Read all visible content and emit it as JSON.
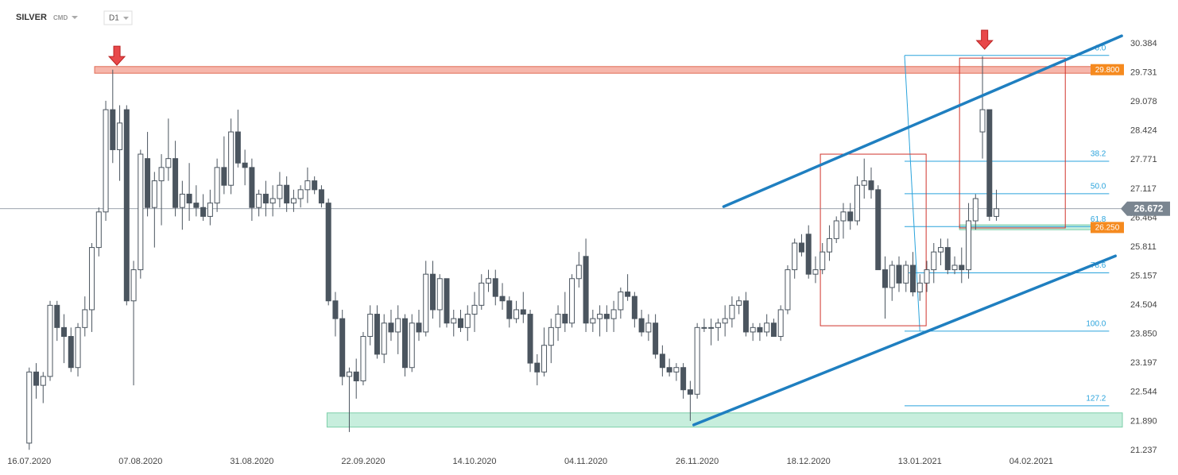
{
  "chart_data": {
    "type": "candlestick",
    "symbol": "SILVER",
    "source": "CMD",
    "interval": "D1",
    "up_color": "#ffffff",
    "down_color": "#4b555f",
    "xlim": [
      -4.2,
      157.1
    ],
    "ylim": [
      20.683,
      31.367
    ],
    "xticks": [
      {
        "value": 0,
        "label": "16.07.2020"
      },
      {
        "value": 16,
        "label": "07.08.2020"
      },
      {
        "value": 32,
        "label": "31.08.2020"
      },
      {
        "value": 48,
        "label": "22.09.2020"
      },
      {
        "value": 64,
        "label": "14.10.2020"
      },
      {
        "value": 80,
        "label": "04.11.2020"
      },
      {
        "value": 96,
        "label": "26.11.2020"
      },
      {
        "value": 112,
        "label": "18.12.2020"
      },
      {
        "value": 128,
        "label": "13.01.2021"
      },
      {
        "value": 144,
        "label": "04.02.2021"
      }
    ],
    "yticks": [
      30.384,
      29.731,
      29.078,
      28.424,
      27.771,
      27.117,
      26.464,
      25.811,
      25.157,
      24.504,
      {
        "value": 23.85,
        "label": "23.850"
      },
      23.197,
      22.544,
      {
        "value": 21.89,
        "label": "21.890"
      },
      21.237
    ],
    "last_price": 26.672,
    "ohlc": [
      [
        21.4,
        23.1,
        21.25,
        23.0
      ],
      [
        23.0,
        23.2,
        22.4,
        22.7
      ],
      [
        22.7,
        23.0,
        22.3,
        22.9
      ],
      [
        22.9,
        24.6,
        22.8,
        24.5
      ],
      [
        24.5,
        24.6,
        23.7,
        24.0
      ],
      [
        24.0,
        24.3,
        23.2,
        23.8
      ],
      [
        23.8,
        24.0,
        23.0,
        23.1
      ],
      [
        23.1,
        24.1,
        22.9,
        24.0
      ],
      [
        24.0,
        24.7,
        23.8,
        24.4
      ],
      [
        24.4,
        25.9,
        23.9,
        25.8
      ],
      [
        25.8,
        26.7,
        25.6,
        26.6
      ],
      [
        26.6,
        29.1,
        26.4,
        28.9
      ],
      [
        28.9,
        29.8,
        27.7,
        28.0
      ],
      [
        28.0,
        29.0,
        27.3,
        28.6
      ],
      [
        28.9,
        29.0,
        24.5,
        24.6
      ],
      [
        24.6,
        25.5,
        22.7,
        25.3
      ],
      [
        25.3,
        28.0,
        25.1,
        27.9
      ],
      [
        27.8,
        28.4,
        26.5,
        26.7
      ],
      [
        26.7,
        27.5,
        25.8,
        27.3
      ],
      [
        27.3,
        27.9,
        26.3,
        27.6
      ],
      [
        27.6,
        28.7,
        27.3,
        27.8
      ],
      [
        27.8,
        28.2,
        26.5,
        26.7
      ],
      [
        26.7,
        27.3,
        26.2,
        27.0
      ],
      [
        27.0,
        27.7,
        26.4,
        26.8
      ],
      [
        26.8,
        27.2,
        26.5,
        26.7
      ],
      [
        26.7,
        27.0,
        26.4,
        26.5
      ],
      [
        26.5,
        27.1,
        26.3,
        26.8
      ],
      [
        26.8,
        27.8,
        26.6,
        27.6
      ],
      [
        27.6,
        28.3,
        27.0,
        27.2
      ],
      [
        27.2,
        28.7,
        27.0,
        28.4
      ],
      [
        28.4,
        28.9,
        27.6,
        27.7
      ],
      [
        27.7,
        28.0,
        27.2,
        27.6
      ],
      [
        27.6,
        27.8,
        26.4,
        26.7
      ],
      [
        26.7,
        27.1,
        26.5,
        27.0
      ],
      [
        27.0,
        27.3,
        26.5,
        26.8
      ],
      [
        26.8,
        27.2,
        26.5,
        26.9
      ],
      [
        26.9,
        27.5,
        26.7,
        27.2
      ],
      [
        27.2,
        27.4,
        26.6,
        26.8
      ],
      [
        26.8,
        27.1,
        26.6,
        26.9
      ],
      [
        26.9,
        27.2,
        26.7,
        27.1
      ],
      [
        27.1,
        27.6,
        26.8,
        27.3
      ],
      [
        27.3,
        27.4,
        27.0,
        27.1
      ],
      [
        27.1,
        27.2,
        26.7,
        26.8
      ],
      [
        26.8,
        26.9,
        24.5,
        24.6
      ],
      [
        24.6,
        24.8,
        23.8,
        24.2
      ],
      [
        24.2,
        24.4,
        22.7,
        22.9
      ],
      [
        22.9,
        23.1,
        21.65,
        23.0
      ],
      [
        23.0,
        23.3,
        22.4,
        22.8
      ],
      [
        22.8,
        23.9,
        22.7,
        23.8
      ],
      [
        23.8,
        24.5,
        23.6,
        24.3
      ],
      [
        24.3,
        24.5,
        23.3,
        23.4
      ],
      [
        23.4,
        24.3,
        23.2,
        24.1
      ],
      [
        24.1,
        24.4,
        23.7,
        23.9
      ],
      [
        23.9,
        24.5,
        23.4,
        24.2
      ],
      [
        24.2,
        24.3,
        22.9,
        23.1
      ],
      [
        23.1,
        24.3,
        23.0,
        24.1
      ],
      [
        24.1,
        24.4,
        23.7,
        23.9
      ],
      [
        23.9,
        25.5,
        23.8,
        25.2
      ],
      [
        25.2,
        25.5,
        24.2,
        24.4
      ],
      [
        24.4,
        25.2,
        24.0,
        25.1
      ],
      [
        25.1,
        25.1,
        24.0,
        24.1
      ],
      [
        24.1,
        24.4,
        23.8,
        24.2
      ],
      [
        24.2,
        24.4,
        23.9,
        24.0
      ],
      [
        24.0,
        24.5,
        23.7,
        24.3
      ],
      [
        24.3,
        24.8,
        23.9,
        24.5
      ],
      [
        24.5,
        25.2,
        24.4,
        25.0
      ],
      [
        25.0,
        25.3,
        24.8,
        25.1
      ],
      [
        25.1,
        25.3,
        24.5,
        24.7
      ],
      [
        24.7,
        25.0,
        24.4,
        24.6
      ],
      [
        24.6,
        24.7,
        24.0,
        24.2
      ],
      [
        24.2,
        24.6,
        24.1,
        24.4
      ],
      [
        24.4,
        24.8,
        24.1,
        24.3
      ],
      [
        24.3,
        24.4,
        23.0,
        23.2
      ],
      [
        23.2,
        23.4,
        22.7,
        23.0
      ],
      [
        23.0,
        24.0,
        22.9,
        23.6
      ],
      [
        23.6,
        24.2,
        23.2,
        24.0
      ],
      [
        24.0,
        24.5,
        23.7,
        24.3
      ],
      [
        24.3,
        24.8,
        23.9,
        24.1
      ],
      [
        24.1,
        25.2,
        24.0,
        25.1
      ],
      [
        25.1,
        25.7,
        24.9,
        25.4
      ],
      [
        25.6,
        26.0,
        23.9,
        24.1
      ],
      [
        24.1,
        24.4,
        23.9,
        24.2
      ],
      [
        24.2,
        24.5,
        23.8,
        24.3
      ],
      [
        24.3,
        24.5,
        23.9,
        24.2
      ],
      [
        24.2,
        24.6,
        23.9,
        24.4
      ],
      [
        24.4,
        24.9,
        24.2,
        24.8
      ],
      [
        24.8,
        25.2,
        24.6,
        24.7
      ],
      [
        24.7,
        24.8,
        24.0,
        24.2
      ],
      [
        24.2,
        24.4,
        23.8,
        23.9
      ],
      [
        23.9,
        24.3,
        23.7,
        24.1
      ],
      [
        24.1,
        24.3,
        23.3,
        23.4
      ],
      [
        23.4,
        23.6,
        22.9,
        23.1
      ],
      [
        23.1,
        23.3,
        22.9,
        23.0
      ],
      [
        23.0,
        23.2,
        22.8,
        23.1
      ],
      [
        23.1,
        23.2,
        22.4,
        22.6
      ],
      [
        22.6,
        22.8,
        21.9,
        22.5
      ],
      [
        22.5,
        24.1,
        22.4,
        24.0
      ],
      [
        24.0,
        24.2,
        23.9,
        24.0
      ],
      [
        24.0,
        24.2,
        23.6,
        24.0
      ],
      [
        24.0,
        24.2,
        23.7,
        24.1
      ],
      [
        24.1,
        24.5,
        23.8,
        24.2
      ],
      [
        24.2,
        24.7,
        24.0,
        24.5
      ],
      [
        24.5,
        24.7,
        24.3,
        24.6
      ],
      [
        24.6,
        24.8,
        23.8,
        23.9
      ],
      [
        23.9,
        24.1,
        23.7,
        24.0
      ],
      [
        24.0,
        24.1,
        23.7,
        23.9
      ],
      [
        23.9,
        24.3,
        23.8,
        24.1
      ],
      [
        24.1,
        24.2,
        23.8,
        23.8
      ],
      [
        23.8,
        24.5,
        23.7,
        24.4
      ],
      [
        24.4,
        25.4,
        24.3,
        25.3
      ],
      [
        25.3,
        26.0,
        25.1,
        25.9
      ],
      [
        25.9,
        26.1,
        25.6,
        25.7
      ],
      [
        26.1,
        26.3,
        25.1,
        25.2
      ],
      [
        25.2,
        25.6,
        25.0,
        25.3
      ],
      [
        25.3,
        25.9,
        25.2,
        25.7
      ],
      [
        25.7,
        26.3,
        25.5,
        26.0
      ],
      [
        26.0,
        26.5,
        25.9,
        26.4
      ],
      [
        26.4,
        26.8,
        26.0,
        26.6
      ],
      [
        26.6,
        26.8,
        26.2,
        26.4
      ],
      [
        26.4,
        27.4,
        26.3,
        27.2
      ],
      [
        27.2,
        27.8,
        26.9,
        27.3
      ],
      [
        27.3,
        27.6,
        26.9,
        27.1
      ],
      [
        27.1,
        27.2,
        25.3,
        25.3
      ],
      [
        25.3,
        25.6,
        24.2,
        24.9
      ],
      [
        24.9,
        25.5,
        24.6,
        25.4
      ],
      [
        25.4,
        25.6,
        24.8,
        25.0
      ],
      [
        25.0,
        25.5,
        24.8,
        25.4
      ],
      [
        25.4,
        25.7,
        24.7,
        24.8
      ],
      [
        24.8,
        25.2,
        24.6,
        25.0
      ],
      [
        25.0,
        25.5,
        24.8,
        25.3
      ],
      [
        25.3,
        25.9,
        25.0,
        25.7
      ],
      [
        25.7,
        26.0,
        25.4,
        25.8
      ],
      [
        25.8,
        26.0,
        25.2,
        25.3
      ],
      [
        25.3,
        25.6,
        25.2,
        25.4
      ],
      [
        25.4,
        25.8,
        25.0,
        25.3
      ],
      [
        25.3,
        26.8,
        25.1,
        26.4
      ],
      [
        26.4,
        27.0,
        26.2,
        26.9
      ],
      [
        28.4,
        30.1,
        27.8,
        28.9
      ],
      [
        28.9,
        28.9,
        26.4,
        26.5
      ],
      [
        26.5,
        27.1,
        26.4,
        26.672
      ]
    ],
    "resistance_zone": {
      "value": 29.8,
      "label": "29.800",
      "range": [
        29.72,
        29.87
      ],
      "xstart": 9.4,
      "color": "#f4a99c",
      "label_color": "#f58a1f"
    },
    "support_zone": {
      "range": [
        21.76,
        22.08
      ],
      "xstart": 42.8,
      "color": "#bdebd7"
    },
    "retest_zone": {
      "value": 26.25,
      "label": "26.250",
      "range": [
        26.2,
        26.31
      ],
      "xstart": 133.7,
      "color": "#bdebd7",
      "label_color": "#f58a1f"
    },
    "fib": {
      "color": "#2aa3dc",
      "x": [
        125.8,
        155.2
      ],
      "anchor_x": [
        125.8,
        128.0
      ],
      "levels": [
        {
          "ratio": {
            "value": 0,
            "label": "0.0"
          },
          "price": 30.12
        },
        {
          "ratio": 38.2,
          "price": 27.74
        },
        {
          "ratio": {
            "value": 50,
            "label": "50.0"
          },
          "price": 27.01
        },
        {
          "ratio": 61.8,
          "price": 26.27
        },
        {
          "ratio": 78.6,
          "price": 25.23
        },
        {
          "ratio": {
            "value": 100,
            "label": "100.0"
          },
          "price": 23.92
        },
        {
          "ratio": 127.2,
          "price": 22.24
        }
      ]
    },
    "trendlines": {
      "color": "#1f7fc0",
      "lines": [
        {
          "x": [
            99.8,
            157
          ],
          "y": [
            26.72,
            30.56
          ]
        },
        {
          "x": [
            95.5,
            156.1
          ],
          "y": [
            21.81,
            25.61
          ]
        }
      ]
    },
    "boxes": {
      "color": "#d0342c",
      "items": [
        {
          "x": [
            113.7,
            128.9
          ],
          "y": [
            24.04,
            27.9
          ]
        },
        {
          "x": [
            133.7,
            148.9
          ],
          "y": [
            26.24,
            30.06
          ]
        }
      ]
    },
    "arrows": {
      "color": "#e8484a",
      "items": [
        {
          "x": 12.6,
          "y": 29.9
        },
        {
          "x": 137.3,
          "y": 30.26
        }
      ]
    }
  }
}
